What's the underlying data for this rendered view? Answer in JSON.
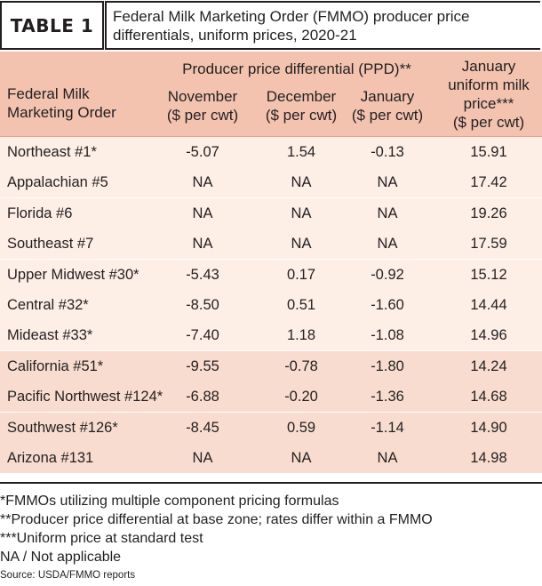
{
  "header": {
    "label": "TABLE 1",
    "title_line1": "Federal Milk Marketing Order (FMMO) producer price",
    "title_line2": "differentials, uniform prices, 2020-21"
  },
  "columns": {
    "fmmo_line1": "Federal Milk",
    "fmmo_line2": "Marketing Order",
    "ppd_group": "Producer price differential (PPD)**",
    "nov_line1": "November",
    "nov_line2": "($ per cwt)",
    "dec_line1": "December",
    "dec_line2": "($ per cwt)",
    "jan_line1": "January",
    "jan_line2": "($ per cwt)",
    "uni_line1": "January",
    "uni_line2": "uniform milk",
    "uni_line3": "price***",
    "uni_line4": "($ per cwt)"
  },
  "colors": {
    "header_bg": "#f3c3b0",
    "band_light": "#fdeee6",
    "band_dark": "#f8dccf",
    "rule": "#231f20"
  },
  "rows": [
    {
      "name": "Northeast #1*",
      "nov": "-5.07",
      "dec": "1.54",
      "jan": "-0.13",
      "uni": "15.91",
      "band": "light"
    },
    {
      "name": "Appalachian #5",
      "nov": "NA",
      "dec": "NA",
      "jan": "NA",
      "uni": "17.42",
      "band": "light"
    },
    {
      "name": "Florida #6",
      "nov": "NA",
      "dec": "NA",
      "jan": "NA",
      "uni": "19.26",
      "band": "light"
    },
    {
      "name": "Southeast #7",
      "nov": "NA",
      "dec": "NA",
      "jan": "NA",
      "uni": "17.59",
      "band": "light"
    },
    {
      "name": "Upper Midwest #30*",
      "nov": "-5.43",
      "dec": "0.17",
      "jan": "-0.92",
      "uni": "15.12",
      "band": "light"
    },
    {
      "name": "Central #32*",
      "nov": "-8.50",
      "dec": "0.51",
      "jan": "-1.60",
      "uni": "14.44",
      "band": "light"
    },
    {
      "name": "Mideast #33*",
      "nov": "-7.40",
      "dec": "1.18",
      "jan": "-1.08",
      "uni": "14.96",
      "band": "light"
    },
    {
      "name": "California #51*",
      "nov": "-9.55",
      "dec": "-0.78",
      "jan": "-1.80",
      "uni": "14.24",
      "band": "dark"
    },
    {
      "name": "Pacific Northwest #124*",
      "nov": "-6.88",
      "dec": "-0.20",
      "jan": "-1.36",
      "uni": "14.68",
      "band": "dark"
    },
    {
      "name": "Southwest #126*",
      "nov": "-8.45",
      "dec": "0.59",
      "jan": "-1.14",
      "uni": "14.90",
      "band": "dark"
    },
    {
      "name": "Arizona #131",
      "nov": "NA",
      "dec": "NA",
      "jan": "NA",
      "uni": "14.98",
      "band": "dark"
    }
  ],
  "footnotes": [
    "*FMMOs utilizing multiple component pricing formulas",
    "**Producer price differential at base zone; rates differ within a FMMO",
    "***Uniform price at standard test",
    "NA / Not applicable"
  ],
  "source": "Source: USDA/FMMO reports"
}
